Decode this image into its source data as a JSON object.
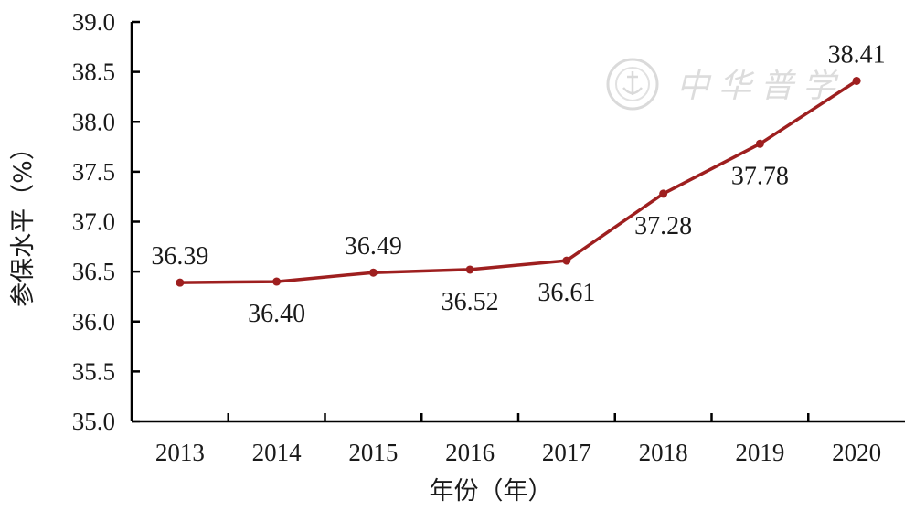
{
  "chart_data": {
    "type": "line",
    "categories": [
      "2013",
      "2014",
      "2015",
      "2016",
      "2017",
      "2018",
      "2019",
      "2020"
    ],
    "series": [
      {
        "values": [
          36.39,
          36.4,
          36.49,
          36.52,
          36.61,
          37.28,
          37.78,
          38.41
        ]
      }
    ],
    "data_labels": [
      "36.39",
      "36.40",
      "36.49",
      "36.52",
      "36.61",
      "37.28",
      "37.78",
      "38.41"
    ],
    "y_ticks": [
      "35.0",
      "35.5",
      "36.0",
      "36.5",
      "37.0",
      "37.5",
      "38.0",
      "38.5",
      "39.0"
    ],
    "xlabel": "年份（年）",
    "ylabel": "参保水平（%）",
    "ylim": [
      35.0,
      39.0
    ],
    "grid": false,
    "line_color": "#9e1f1f",
    "watermark": "中华普学"
  }
}
